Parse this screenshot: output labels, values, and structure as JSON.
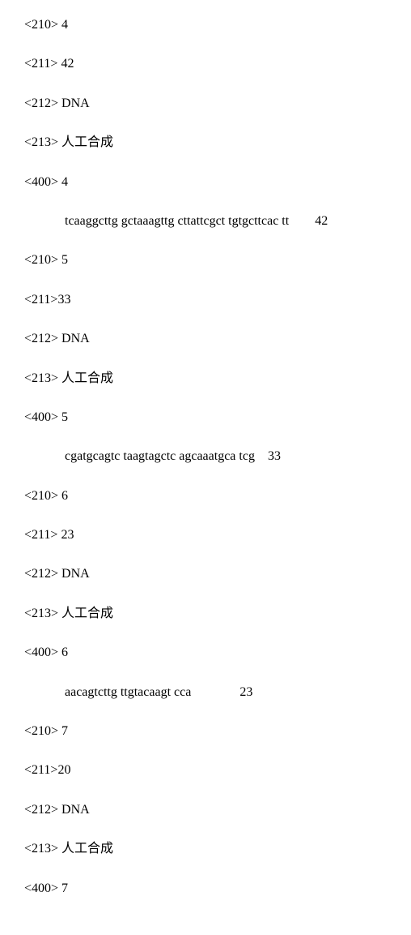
{
  "lines": [
    {
      "type": "tag",
      "text": "<210> 4"
    },
    {
      "type": "tag",
      "text": "<211> 42"
    },
    {
      "type": "tag",
      "text": "<212> DNA"
    },
    {
      "type": "tag",
      "text": "<213>  人工合成"
    },
    {
      "type": "tag",
      "text": "<400> 4"
    },
    {
      "type": "seq",
      "text": "tcaaggcttg gctaaagttg cttattcgct tgtgcttcac tt        42"
    },
    {
      "type": "tag",
      "text": "<210> 5"
    },
    {
      "type": "tag",
      "text": "<211>33"
    },
    {
      "type": "tag",
      "text": "<212> DNA"
    },
    {
      "type": "tag",
      "text": "<213>  人工合成"
    },
    {
      "type": "tag",
      "text": "<400> 5"
    },
    {
      "type": "seq",
      "text": "cgatgcagtc taagtagctc agcaaatgca tcg    33"
    },
    {
      "type": "tag",
      "text": "<210> 6"
    },
    {
      "type": "tag",
      "text": "<211> 23"
    },
    {
      "type": "tag",
      "text": "<212> DNA"
    },
    {
      "type": "tag",
      "text": "<213>  人工合成"
    },
    {
      "type": "tag",
      "text": "<400> 6"
    },
    {
      "type": "seq",
      "text": "aacagtcttg ttgtacaagt cca               23"
    },
    {
      "type": "tag",
      "text": "<210> 7"
    },
    {
      "type": "tag",
      "text": "<211>20"
    },
    {
      "type": "tag",
      "text": "<212> DNA"
    },
    {
      "type": "tag",
      "text": "<213>  人工合成"
    },
    {
      "type": "tag",
      "text": "<400> 7"
    }
  ]
}
